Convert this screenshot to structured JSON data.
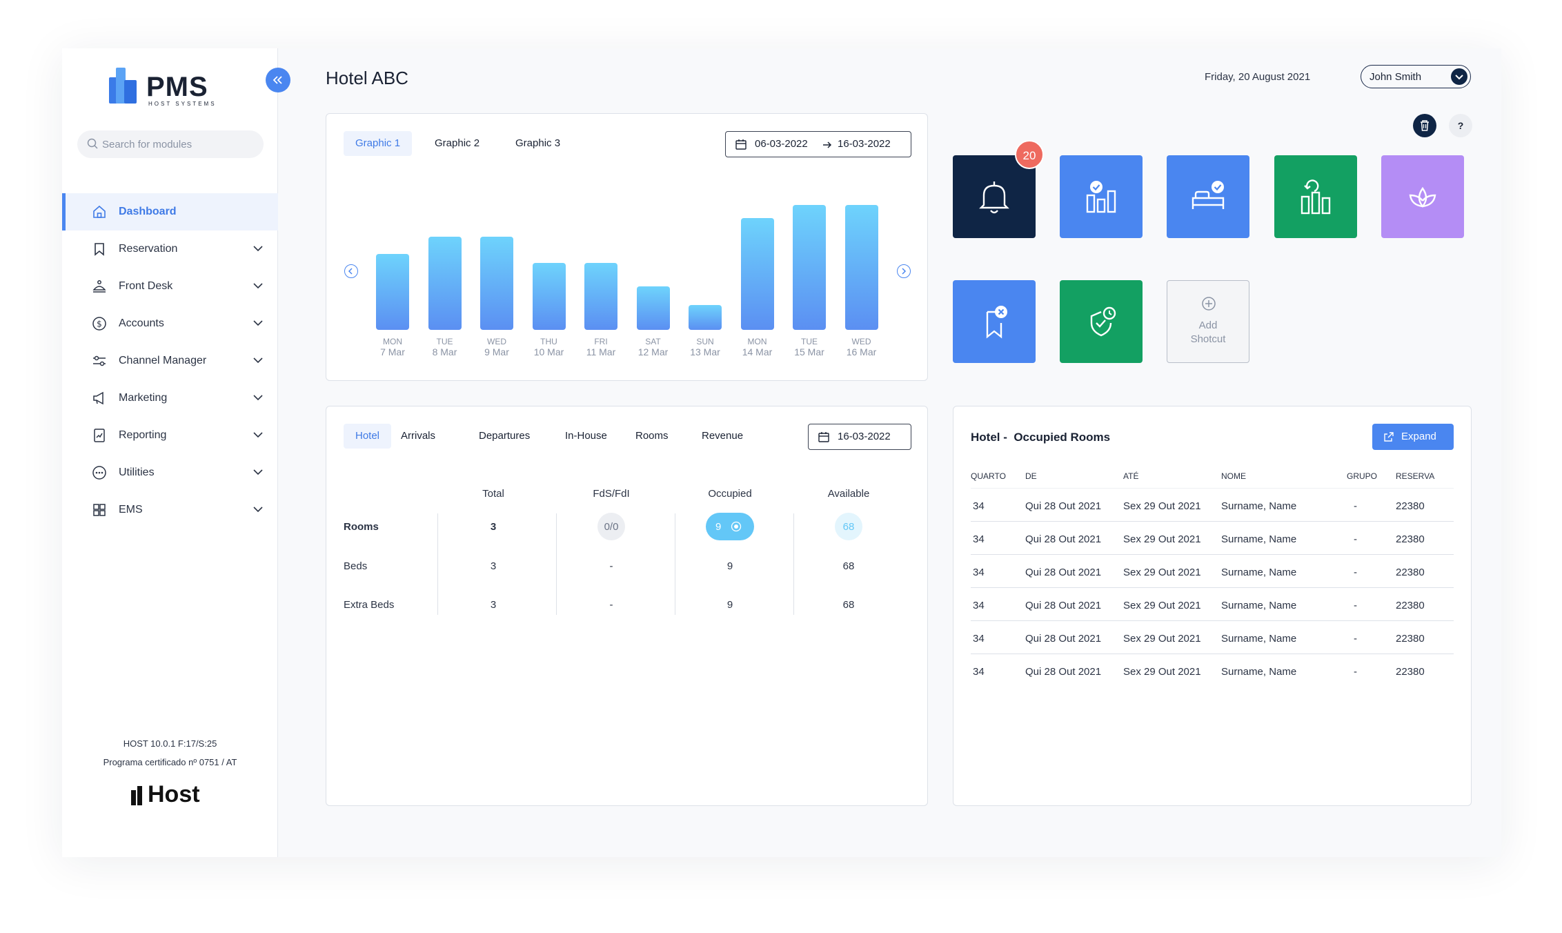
{
  "sidebar": {
    "logo_name": "PMS",
    "logo_sub": "HOST SYSTEMS",
    "search_placeholder": "Search for modules",
    "items": [
      {
        "label": "Dashboard",
        "icon": "home-icon",
        "active": true
      },
      {
        "label": "Reservation",
        "icon": "bookmark-icon"
      },
      {
        "label": "Front Desk",
        "icon": "bell-desk-icon"
      },
      {
        "label": "Accounts",
        "icon": "dollar-icon"
      },
      {
        "label": "Channel Manager",
        "icon": "sliders-icon"
      },
      {
        "label": "Marketing",
        "icon": "megaphone-icon"
      },
      {
        "label": "Reporting",
        "icon": "report-icon"
      },
      {
        "label": "Utilities",
        "icon": "dots-icon"
      },
      {
        "label": "EMS",
        "icon": "grid-icon"
      }
    ],
    "version": "HOST 10.0.1 F:17/S:25",
    "certificate": "Programa certificado nº 0751 / AT",
    "footer_logo": "Host"
  },
  "header": {
    "title": "Hotel ABC",
    "date": "Friday, 20 August 2021",
    "user": "John Smith"
  },
  "chart_card": {
    "tabs": [
      "Graphic 1",
      "Graphic 2",
      "Graphic 3"
    ],
    "date_from": "06-03-2022",
    "date_to": "16-03-2022"
  },
  "chart_data": {
    "type": "bar",
    "categories": [
      "MON 7 Mar",
      "TUE 8 Mar",
      "WED 9 Mar",
      "THU 10 Mar",
      "FRI 11 Mar",
      "SAT 12 Mar",
      "SUN 13 Mar",
      "MON 14 Mar",
      "TUE 15 Mar",
      "WED 16 Mar"
    ],
    "days": [
      "MON",
      "TUE",
      "WED",
      "THU",
      "FRI",
      "SAT",
      "SUN",
      "MON",
      "TUE",
      "WED"
    ],
    "dates": [
      "7 Mar",
      "8 Mar",
      "9 Mar",
      "10 Mar",
      "11 Mar",
      "12 Mar",
      "13 Mar",
      "14 Mar",
      "15 Mar",
      "16 Mar"
    ],
    "values": [
      58,
      71,
      71,
      51,
      51,
      33,
      19,
      85,
      95,
      95
    ],
    "ylim": [
      0,
      100
    ],
    "colors": {
      "top": "#6ed3fc",
      "bottom": "#5b8ff2"
    }
  },
  "shortcuts": {
    "notification_count": "20",
    "tiles": [
      {
        "name": "notifications",
        "icon": "bell-icon",
        "color": "#0f2545"
      },
      {
        "name": "reports-check",
        "icon": "chart-check-icon",
        "color": "#4a86f0"
      },
      {
        "name": "room-check",
        "icon": "bed-check-icon",
        "color": "#4a86f0"
      },
      {
        "name": "statistics",
        "icon": "chart-refresh-icon",
        "color": "#13a062"
      },
      {
        "name": "spa",
        "icon": "lotus-icon",
        "color": "#b48df5"
      },
      {
        "name": "cancel-reservation",
        "icon": "bookmark-x-icon",
        "color": "#4a86f0"
      },
      {
        "name": "security",
        "icon": "shield-check-icon",
        "color": "#13a062"
      }
    ],
    "add_label_1": "Add",
    "add_label_2": "Shotcut"
  },
  "hotel_card": {
    "tabs": [
      "Hotel",
      "Arrivals",
      "Departures",
      "In-House",
      "Rooms",
      "Revenue"
    ],
    "date": "16-03-2022",
    "columns": [
      "Total",
      "FdS/FdI",
      "Occupied",
      "Available"
    ],
    "rows": [
      {
        "label": "Rooms",
        "values": [
          "3",
          "0/0",
          "9",
          "68"
        ]
      },
      {
        "label": "Beds",
        "values": [
          "3",
          "-",
          "9",
          "68"
        ]
      },
      {
        "label": "Extra Beds",
        "values": [
          "3",
          "-",
          "9",
          "68"
        ]
      }
    ]
  },
  "occupied_card": {
    "title": "Hotel -  Occupied Rooms",
    "expand_label": "Expand",
    "columns": [
      "QUARTO",
      "DE",
      "ATÉ",
      "NOME",
      "GRUPO",
      "RESERVA"
    ],
    "rows": [
      [
        "34",
        "Qui 28 Out 2021",
        "Sex 29 Out 2021",
        "Surname, Name",
        "-",
        "22380"
      ],
      [
        "34",
        "Qui 28 Out 2021",
        "Sex 29 Out 2021",
        "Surname, Name",
        "-",
        "22380"
      ],
      [
        "34",
        "Qui 28 Out 2021",
        "Sex 29 Out 2021",
        "Surname, Name",
        "-",
        "22380"
      ],
      [
        "34",
        "Qui 28 Out 2021",
        "Sex 29 Out 2021",
        "Surname, Name",
        "-",
        "22380"
      ],
      [
        "34",
        "Qui 28 Out 2021",
        "Sex 29 Out 2021",
        "Surname, Name",
        "-",
        "22380"
      ],
      [
        "34",
        "Qui 28 Out 2021",
        "Sex 29 Out 2021",
        "Surname, Name",
        "-",
        "22380"
      ]
    ]
  }
}
